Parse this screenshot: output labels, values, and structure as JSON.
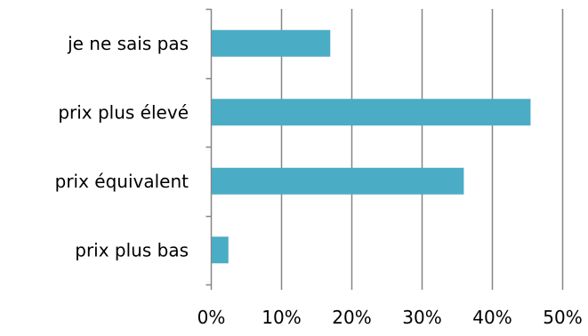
{
  "chart_data": {
    "type": "bar",
    "orientation": "horizontal",
    "categories": [
      "je ne sais pas",
      "prix plus élevé",
      "prix équivalent",
      "prix plus bas"
    ],
    "values": [
      17,
      45.5,
      36,
      2.5
    ],
    "xlim": [
      0,
      50
    ],
    "xticks": [
      0,
      10,
      20,
      30,
      40,
      50
    ],
    "xtick_labels": [
      "0%",
      "10%",
      "20%",
      "30%",
      "40%",
      "50%"
    ],
    "grid": "vertical",
    "legend": "none",
    "colors": {
      "bar": "#4BACC6",
      "grid": "#868686",
      "axis": "#868686"
    }
  }
}
